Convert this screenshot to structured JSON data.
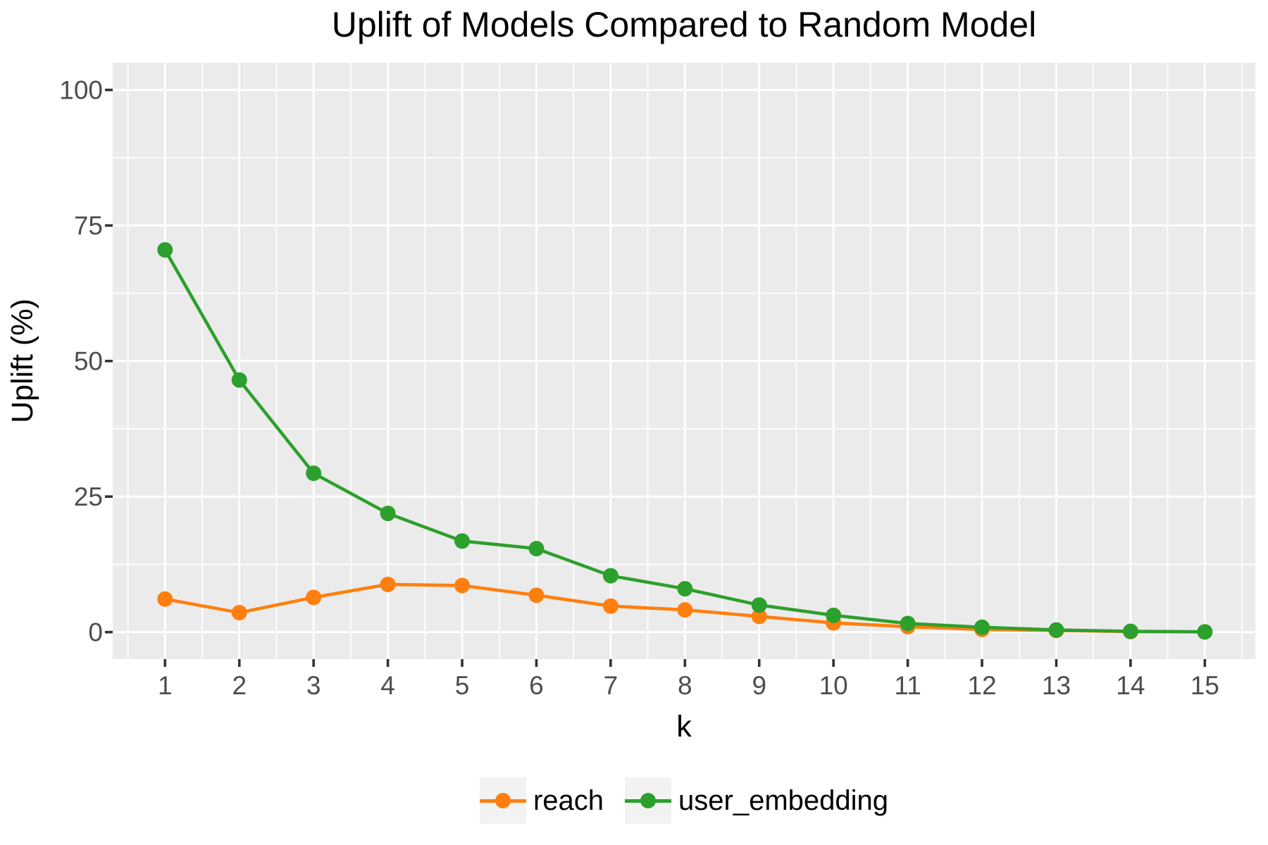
{
  "title": "Uplift of Models Compared to Random Model",
  "chart_data": {
    "type": "line",
    "title": "Uplift of Models Compared to Random Model",
    "xlabel": "k",
    "ylabel": "Uplift (%)",
    "x": [
      1,
      2,
      3,
      4,
      5,
      6,
      7,
      8,
      9,
      10,
      11,
      12,
      13,
      14,
      15
    ],
    "xticks": [
      "1",
      "2",
      "3",
      "4",
      "5",
      "6",
      "7",
      "8",
      "9",
      "10",
      "11",
      "12",
      "13",
      "14",
      "15"
    ],
    "yticks": [
      "0",
      "25",
      "50",
      "75",
      "100"
    ],
    "ytick_values": [
      0,
      25,
      50,
      75,
      100
    ],
    "ylim": [
      0,
      100
    ],
    "xlim": [
      0.3,
      15.7
    ],
    "grid": "white major gridlines at each tick, white minor gridlines at half-steps, on gray panel",
    "legend_position": "bottom-center",
    "series": [
      {
        "name": "reach",
        "color": "#FF7F0E",
        "values": [
          6.1,
          3.6,
          6.4,
          8.8,
          8.6,
          6.8,
          4.8,
          4.1,
          2.9,
          1.7,
          1.0,
          0.5,
          0.3,
          0.1,
          0.05
        ]
      },
      {
        "name": "user_embedding",
        "color": "#2CA02C",
        "values": [
          70.5,
          46.5,
          29.3,
          21.9,
          16.8,
          15.4,
          10.4,
          8.0,
          5.0,
          3.1,
          1.6,
          0.9,
          0.4,
          0.15,
          0.05
        ]
      }
    ]
  },
  "legend": {
    "items": [
      {
        "label": "reach",
        "color": "#FF7F0E"
      },
      {
        "label": "user_embedding",
        "color": "#2CA02C"
      }
    ]
  },
  "style": {
    "panel_bg": "#EBEBEB",
    "grid_color": "#FFFFFF",
    "tick_mark_color": "#333333",
    "tick_label_color": "#4D4D4D",
    "axis_title_color": "#000000",
    "title_color": "#000000",
    "legend_key_bg": "#F2F2F2"
  }
}
